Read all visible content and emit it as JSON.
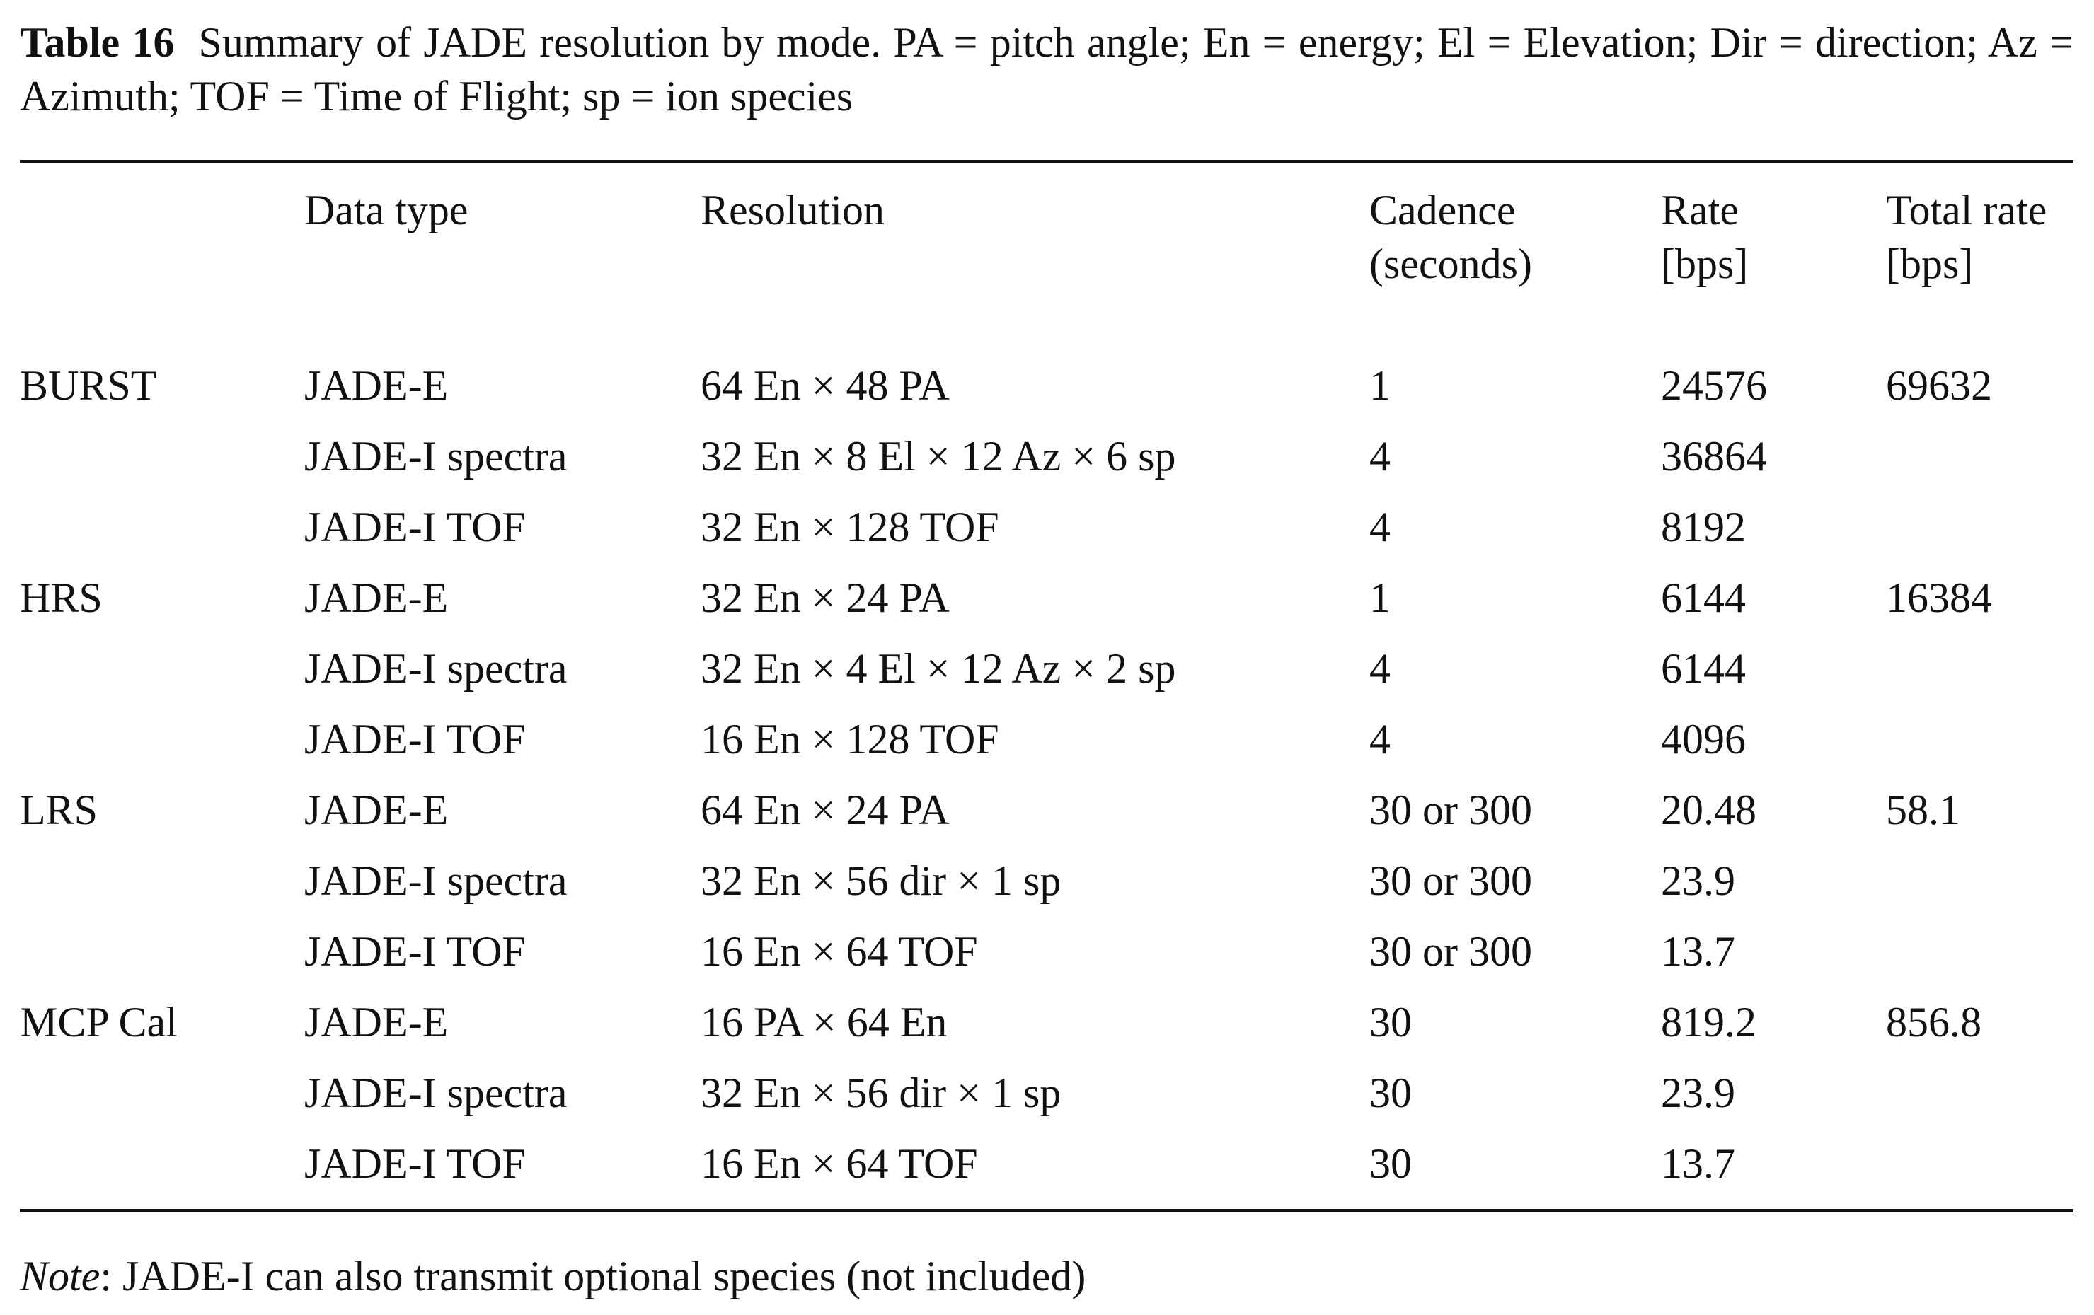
{
  "table": {
    "label": "Table 16",
    "caption": "Summary of JADE resolution by mode. PA = pitch angle; En = energy; El = Elevation; Dir = direction; Az = Azimuth; TOF = Time of Flight; sp = ion species",
    "headers": [
      "",
      "Data type",
      "Resolution",
      "Cadence\n(seconds)",
      "Rate\n[bps]",
      "Total rate\n[bps]"
    ],
    "rows": [
      {
        "mode": "BURST",
        "data_type": "JADE-E",
        "resolution": "64 En × 48 PA",
        "cadence": "1",
        "rate": "24576",
        "total_rate": "69632"
      },
      {
        "mode": "",
        "data_type": "JADE-I spectra",
        "resolution": "32 En × 8 El × 12 Az × 6 sp",
        "cadence": "4",
        "rate": "36864",
        "total_rate": ""
      },
      {
        "mode": "",
        "data_type": "JADE-I TOF",
        "resolution": "32 En × 128 TOF",
        "cadence": "4",
        "rate": "8192",
        "total_rate": ""
      },
      {
        "mode": "HRS",
        "data_type": "JADE-E",
        "resolution": "32 En × 24 PA",
        "cadence": "1",
        "rate": "6144",
        "total_rate": "16384"
      },
      {
        "mode": "",
        "data_type": "JADE-I spectra",
        "resolution": "32 En × 4 El × 12 Az × 2 sp",
        "cadence": "4",
        "rate": "6144",
        "total_rate": ""
      },
      {
        "mode": "",
        "data_type": "JADE-I TOF",
        "resolution": "16 En × 128 TOF",
        "cadence": "4",
        "rate": "4096",
        "total_rate": ""
      },
      {
        "mode": "LRS",
        "data_type": "JADE-E",
        "resolution": "64 En × 24 PA",
        "cadence": "30 or 300",
        "rate": "20.48",
        "total_rate": "58.1"
      },
      {
        "mode": "",
        "data_type": "JADE-I spectra",
        "resolution": "32 En × 56 dir × 1 sp",
        "cadence": "30 or 300",
        "rate": "23.9",
        "total_rate": ""
      },
      {
        "mode": "",
        "data_type": "JADE-I TOF",
        "resolution": "16 En × 64 TOF",
        "cadence": "30 or 300",
        "rate": "13.7",
        "total_rate": ""
      },
      {
        "mode": "MCP Cal",
        "data_type": "JADE-E",
        "resolution": "16 PA × 64 En",
        "cadence": "30",
        "rate": "819.2",
        "total_rate": "856.8"
      },
      {
        "mode": "",
        "data_type": "JADE-I spectra",
        "resolution": "32 En × 56 dir × 1 sp",
        "cadence": "30",
        "rate": "23.9",
        "total_rate": ""
      },
      {
        "mode": "",
        "data_type": "JADE-I TOF",
        "resolution": "16 En × 64 TOF",
        "cadence": "30",
        "rate": "13.7",
        "total_rate": ""
      }
    ],
    "note_label": "Note",
    "note_text": ": JADE-I can also transmit optional species (not included)"
  }
}
